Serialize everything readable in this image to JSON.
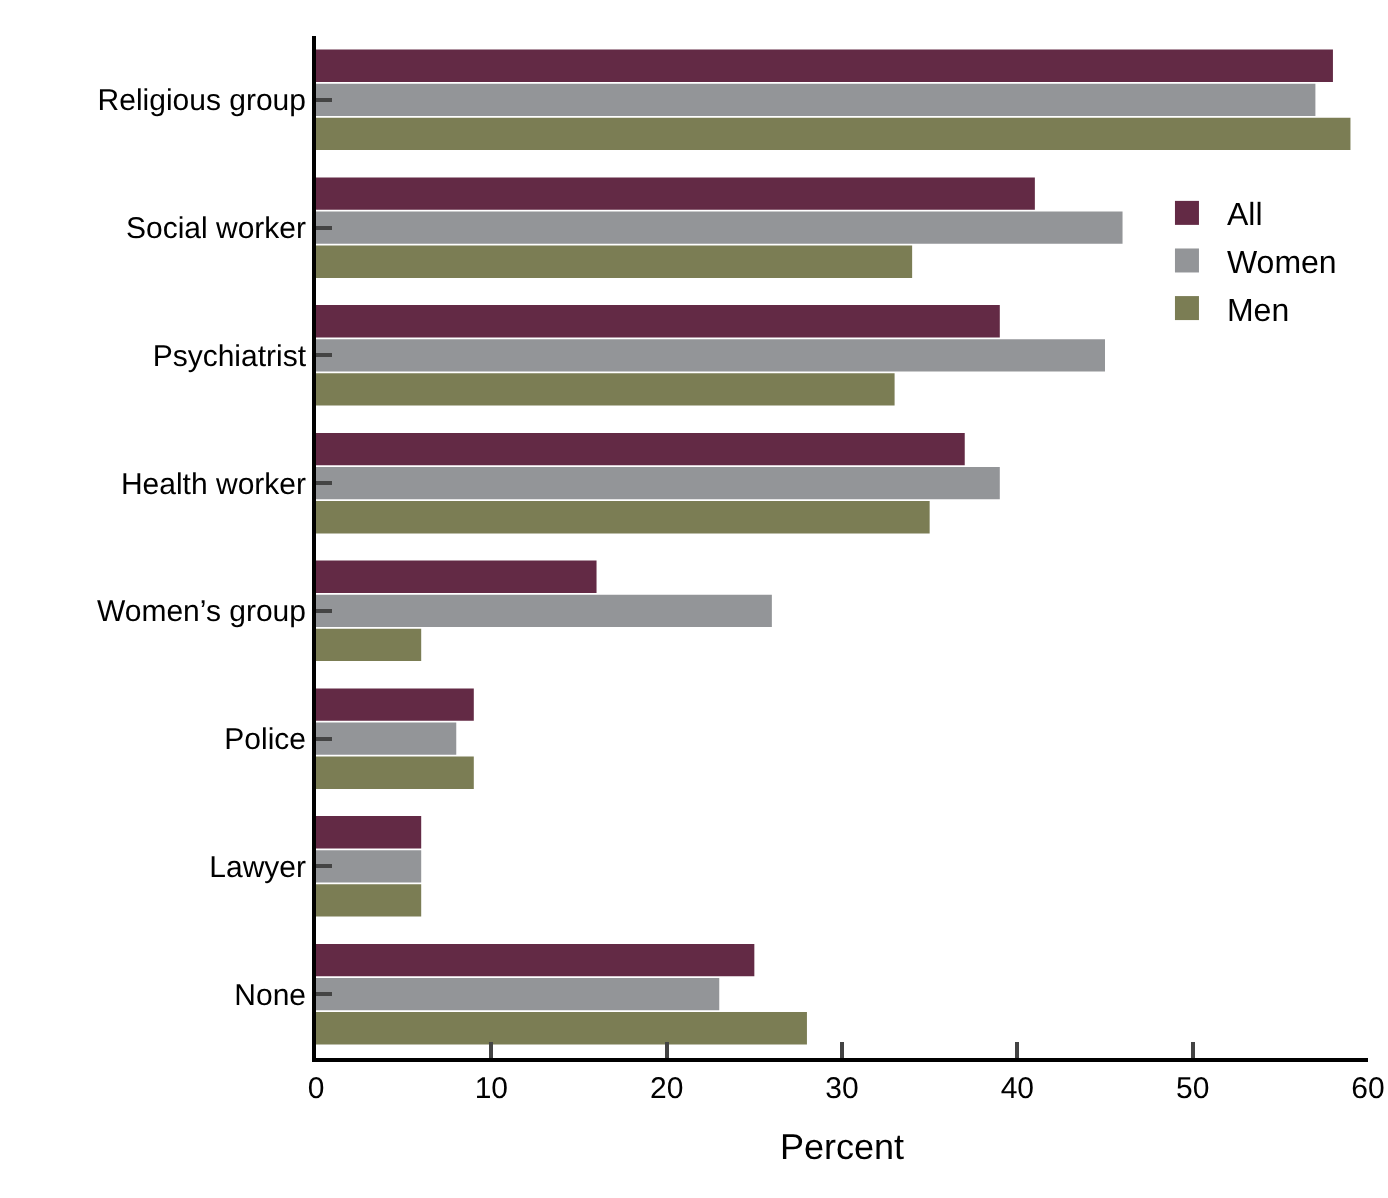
{
  "chart_data": {
    "type": "bar",
    "orientation": "horizontal",
    "xlabel": "Percent",
    "categories": [
      "Religious group",
      "Social worker",
      "Psychiatrist",
      "Health worker",
      "Women’s group",
      "Police",
      "Lawyer",
      "None"
    ],
    "series": [
      {
        "name": "All",
        "color": "#632a45",
        "values": [
          58,
          41,
          39,
          37,
          16,
          9,
          6,
          25
        ]
      },
      {
        "name": "Women",
        "color": "#939598",
        "values": [
          57,
          46,
          45,
          39,
          26,
          8,
          6,
          23
        ]
      },
      {
        "name": "Men",
        "color": "#7b7d54",
        "values": [
          59,
          34,
          33,
          35,
          6,
          9,
          6,
          28
        ]
      }
    ],
    "xlim": [
      0,
      60
    ],
    "xticks": [
      0,
      10,
      20,
      30,
      40,
      50,
      60
    ],
    "grid": false,
    "legend": "top right"
  }
}
